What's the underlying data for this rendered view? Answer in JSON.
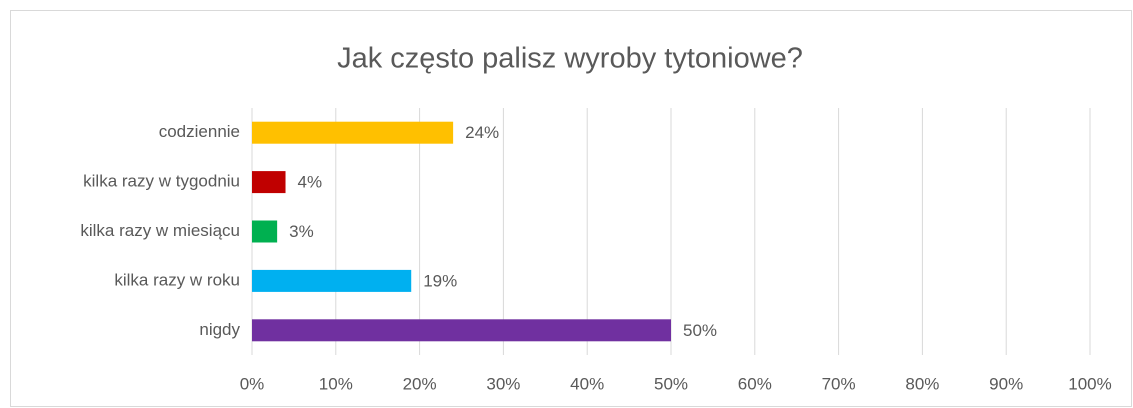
{
  "chart_data": {
    "type": "bar",
    "orientation": "horizontal",
    "title": "Jak często palisz wyroby tytoniowe?",
    "categories": [
      "codziennie",
      "kilka razy w tygodniu",
      "kilka razy w miesiącu",
      "kilka razy w roku",
      "nigdy"
    ],
    "values": [
      24,
      4,
      3,
      19,
      50
    ],
    "value_labels": [
      "24%",
      "4%",
      "3%",
      "19%",
      "50%"
    ],
    "colors": [
      "#ffc000",
      "#c00000",
      "#00b050",
      "#00b0f0",
      "#7030a0"
    ],
    "xlim": [
      0,
      100
    ],
    "xticks": [
      {
        "value": 0,
        "label": "0%"
      },
      {
        "value": 10,
        "label": "10%"
      },
      {
        "value": 20,
        "label": "20%"
      },
      {
        "value": 30,
        "label": "30%"
      },
      {
        "value": 40,
        "label": "40%"
      },
      {
        "value": 50,
        "label": "50%"
      },
      {
        "value": 60,
        "label": "60%"
      },
      {
        "value": 70,
        "label": "70%"
      },
      {
        "value": 80,
        "label": "80%"
      },
      {
        "value": 90,
        "label": "90%"
      },
      {
        "value": 100,
        "label": "100%"
      }
    ],
    "grid": true
  }
}
